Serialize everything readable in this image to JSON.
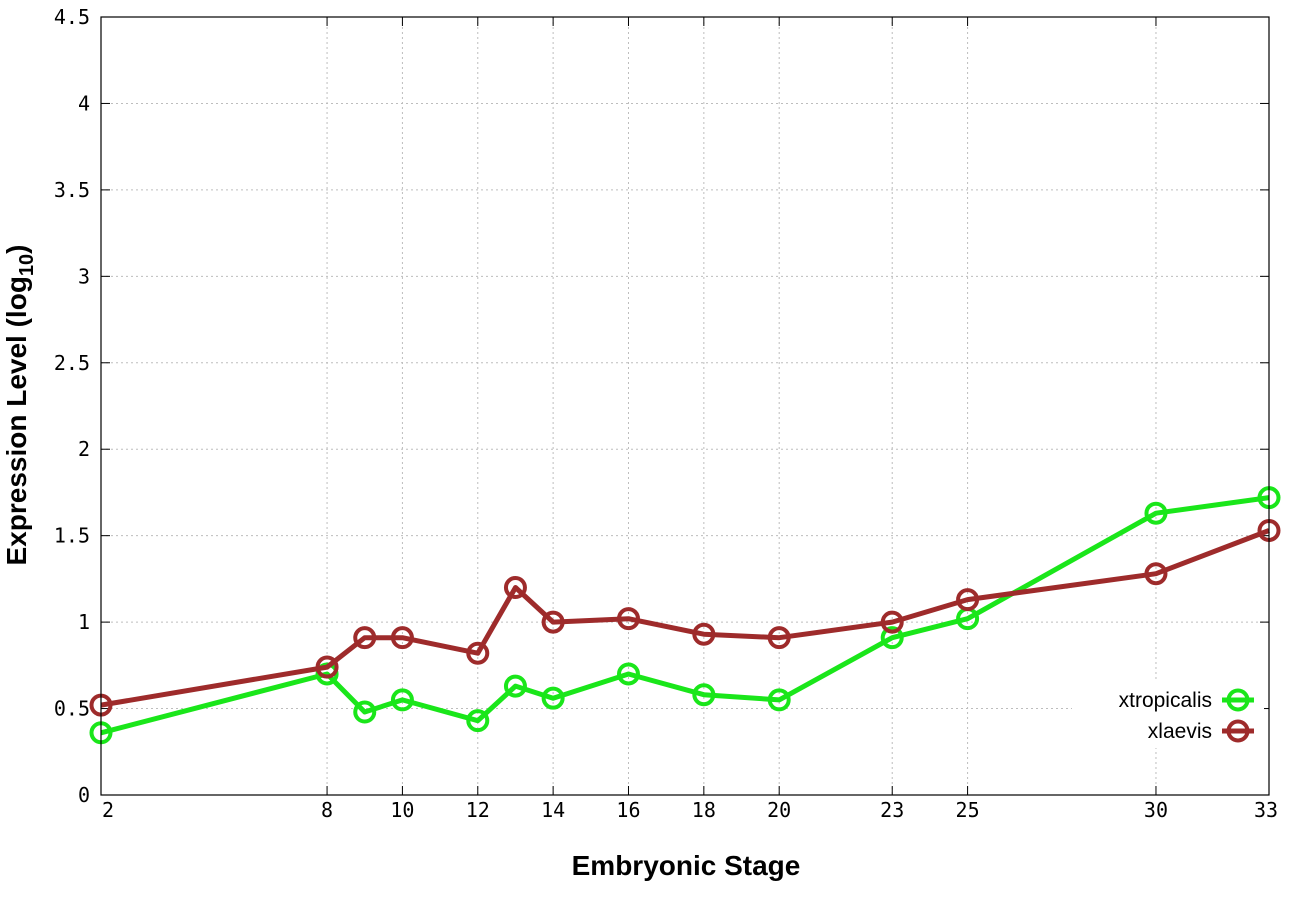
{
  "chart_data": {
    "type": "line",
    "xlabel": "Embryonic Stage",
    "ylabel_main": "Expression Level (log",
    "ylabel_sub": "10",
    "ylabel_end": ")",
    "x": [
      2,
      8,
      9,
      10,
      12,
      13,
      14,
      16,
      18,
      20,
      23,
      25,
      30,
      33
    ],
    "x_tick_labels": [
      "2",
      "8",
      "10",
      "12",
      "14",
      "16",
      "18",
      "20",
      "23",
      "25",
      "30",
      "33"
    ],
    "y_tick_labels": [
      "0",
      "0.5",
      "1",
      "1.5",
      "2",
      "2.5",
      "3",
      "3.5",
      "4",
      "4.5"
    ],
    "ylim": [
      0,
      4.5
    ],
    "grid": true,
    "legend_position": "bottom-right",
    "series": [
      {
        "name": "xtropicalis",
        "color": "#1ae61a",
        "values": [
          0.36,
          0.7,
          0.48,
          0.55,
          0.43,
          0.63,
          0.56,
          0.7,
          0.58,
          0.55,
          0.91,
          1.02,
          1.63,
          1.72
        ]
      },
      {
        "name": "xlaevis",
        "color": "#9e2b2b",
        "values": [
          0.52,
          0.74,
          0.91,
          0.91,
          0.82,
          1.2,
          1.0,
          1.02,
          0.93,
          0.91,
          1.0,
          1.13,
          1.28,
          1.53
        ]
      }
    ]
  }
}
